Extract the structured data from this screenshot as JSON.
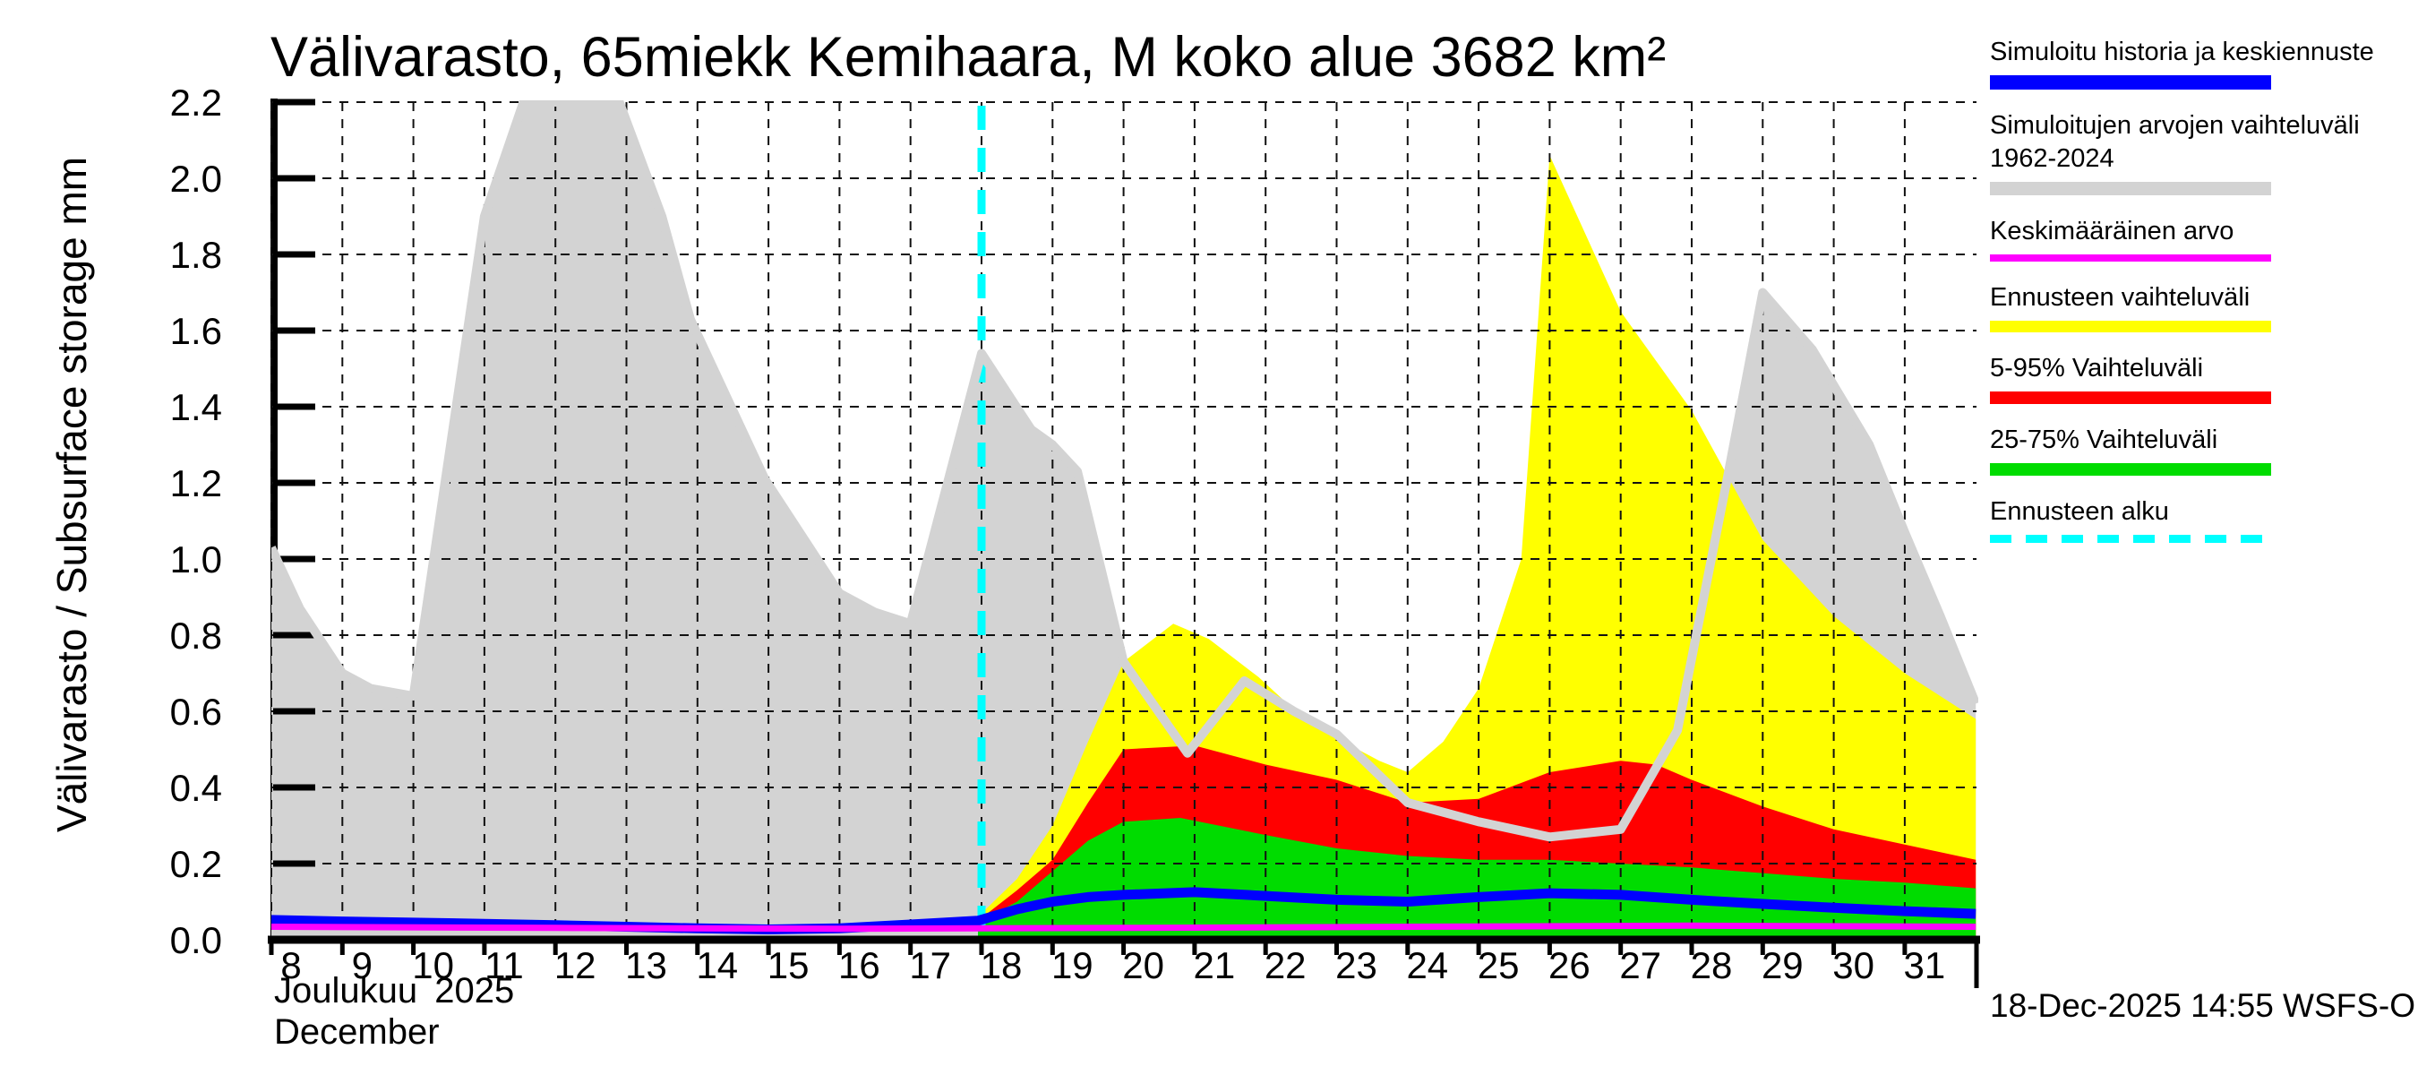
{
  "chart_data": {
    "type": "area",
    "title": "Välivarasto, 65miekk Kemihaara, M koko alue 3682 km²",
    "ylabel": "Välivarasto / Subsurface storage  mm",
    "xlabel_fi": "Joulukuu 2025",
    "xlabel_en": "December",
    "timestamp": "18-Dec-2025 14:55 WSFS-O",
    "ylim": [
      0.0,
      2.2
    ],
    "y_tick_labels": [
      "0.0",
      "0.2",
      "0.4",
      "0.6",
      "0.8",
      "1.0",
      "1.2",
      "1.4",
      "1.6",
      "1.8",
      "2.0",
      "2.2"
    ],
    "x_ticks": [
      8,
      9,
      10,
      11,
      12,
      13,
      14,
      15,
      16,
      17,
      18,
      19,
      20,
      21,
      22,
      23,
      24,
      25,
      26,
      27,
      28,
      29,
      30,
      31
    ],
    "x_domain": [
      8,
      32
    ],
    "forecast_start_day": 18,
    "grid": "dashed",
    "colors": {
      "hist_range_fill": "#d3d3d3",
      "hist_range_line": "#d3d3d3",
      "forecast_range": "#ffff00",
      "p5_95": "#ff0000",
      "p25_75": "#00dc00",
      "median": "#0000ff",
      "mean": "#ff00ff",
      "forecast_start": "#00ffff",
      "axis": "#000000"
    },
    "series": {
      "hist_range_max": [
        [
          8.0,
          1.03
        ],
        [
          8.4,
          0.87
        ],
        [
          9.0,
          0.7
        ],
        [
          9.4,
          0.66
        ],
        [
          10.0,
          0.64
        ],
        [
          11.0,
          1.9
        ],
        [
          11.55,
          2.2
        ],
        [
          12.9,
          2.2
        ],
        [
          13.5,
          1.9
        ],
        [
          13.9,
          1.63
        ],
        [
          14.95,
          1.21
        ],
        [
          16.0,
          0.91
        ],
        [
          16.5,
          0.86
        ],
        [
          17.0,
          0.83
        ],
        [
          18.0,
          1.54
        ],
        [
          18.7,
          1.34
        ],
        [
          19.0,
          1.3
        ],
        [
          19.35,
          1.23
        ],
        [
          20.0,
          0.73
        ],
        [
          20.9,
          0.49
        ],
        [
          21.7,
          0.68
        ],
        [
          22.4,
          0.6
        ],
        [
          23.0,
          0.54
        ],
        [
          24.0,
          0.36
        ],
        [
          25.0,
          0.31
        ],
        [
          26.0,
          0.27
        ],
        [
          27.0,
          0.29
        ],
        [
          27.8,
          0.55
        ],
        [
          28.5,
          1.21
        ],
        [
          29.0,
          1.7
        ],
        [
          29.7,
          1.55
        ],
        [
          30.5,
          1.3
        ],
        [
          31.0,
          1.07
        ],
        [
          31.5,
          0.85
        ],
        [
          32.0,
          0.62
        ]
      ],
      "forecast_max": [
        [
          17.95,
          0.06
        ],
        [
          18.5,
          0.16
        ],
        [
          19.0,
          0.3
        ],
        [
          19.5,
          0.52
        ],
        [
          20.0,
          0.73
        ],
        [
          20.7,
          0.83
        ],
        [
          21.2,
          0.79
        ],
        [
          21.9,
          0.69
        ],
        [
          22.6,
          0.57
        ],
        [
          23.6,
          0.47
        ],
        [
          24.0,
          0.44
        ],
        [
          24.5,
          0.52
        ],
        [
          25.0,
          0.66
        ],
        [
          25.6,
          1.0
        ],
        [
          26.0,
          2.06
        ],
        [
          27.0,
          1.65
        ],
        [
          28.0,
          1.39
        ],
        [
          28.5,
          1.22
        ],
        [
          29.0,
          1.05
        ],
        [
          30.0,
          0.85
        ],
        [
          31.0,
          0.7
        ],
        [
          32.0,
          0.58
        ]
      ],
      "p5_95_max": [
        [
          17.95,
          0.05
        ],
        [
          18.5,
          0.13
        ],
        [
          19.0,
          0.21
        ],
        [
          19.5,
          0.36
        ],
        [
          20.0,
          0.5
        ],
        [
          21.0,
          0.51
        ],
        [
          22.0,
          0.46
        ],
        [
          23.0,
          0.42
        ],
        [
          24.0,
          0.36
        ],
        [
          25.0,
          0.37
        ],
        [
          26.0,
          0.44
        ],
        [
          27.0,
          0.47
        ],
        [
          27.5,
          0.46
        ],
        [
          28.0,
          0.42
        ],
        [
          29.0,
          0.35
        ],
        [
          30.0,
          0.29
        ],
        [
          31.0,
          0.25
        ],
        [
          32.0,
          0.21
        ]
      ],
      "p25_75_max": [
        [
          17.95,
          0.045
        ],
        [
          18.5,
          0.1
        ],
        [
          19.0,
          0.18
        ],
        [
          19.5,
          0.26
        ],
        [
          20.0,
          0.31
        ],
        [
          20.8,
          0.32
        ],
        [
          22.0,
          0.275
        ],
        [
          23.0,
          0.24
        ],
        [
          24.0,
          0.22
        ],
        [
          25.0,
          0.21
        ],
        [
          26.0,
          0.21
        ],
        [
          27.0,
          0.2
        ],
        [
          28.0,
          0.19
        ],
        [
          29.0,
          0.175
        ],
        [
          30.0,
          0.16
        ],
        [
          31.0,
          0.15
        ],
        [
          32.0,
          0.135
        ]
      ],
      "median": [
        [
          8.0,
          0.052
        ],
        [
          9.0,
          0.048
        ],
        [
          10.0,
          0.045
        ],
        [
          11.0,
          0.042
        ],
        [
          12.0,
          0.038
        ],
        [
          13.0,
          0.034
        ],
        [
          14.0,
          0.03
        ],
        [
          15.0,
          0.027
        ],
        [
          16.0,
          0.03
        ],
        [
          17.0,
          0.04
        ],
        [
          17.95,
          0.05
        ],
        [
          18.5,
          0.08
        ],
        [
          19.0,
          0.1
        ],
        [
          19.5,
          0.112
        ],
        [
          20.0,
          0.118
        ],
        [
          21.0,
          0.125
        ],
        [
          22.0,
          0.115
        ],
        [
          23.0,
          0.105
        ],
        [
          24.0,
          0.1
        ],
        [
          25.0,
          0.112
        ],
        [
          26.0,
          0.122
        ],
        [
          27.0,
          0.118
        ],
        [
          28.0,
          0.105
        ],
        [
          29.0,
          0.094
        ],
        [
          30.0,
          0.084
        ],
        [
          31.0,
          0.075
        ],
        [
          32.0,
          0.068
        ]
      ],
      "mean": [
        [
          8.0,
          0.034
        ],
        [
          12.0,
          0.031
        ],
        [
          16.0,
          0.029
        ],
        [
          20.0,
          0.031
        ],
        [
          24.0,
          0.034
        ],
        [
          28.0,
          0.037
        ],
        [
          32.0,
          0.034
        ]
      ]
    }
  },
  "legend": {
    "items": [
      {
        "label": "Simuloitu historia ja keskiennuste",
        "color": "#0000ff",
        "style": "solid",
        "thickness": 16
      },
      {
        "label": "Simuloitujen arvojen vaihteluväli 1962-2024",
        "color": "#d3d3d3",
        "style": "solid",
        "thickness": 15
      },
      {
        "label": "Keskimääräinen arvo",
        "color": "#ff00ff",
        "style": "solid",
        "thickness": 8
      },
      {
        "label": "Ennusteen vaihteluväli",
        "color": "#ffff00",
        "style": "solid",
        "thickness": 13
      },
      {
        "label": "5-95% Vaihteluväli",
        "color": "#ff0000",
        "style": "solid",
        "thickness": 14
      },
      {
        "label": "25-75% Vaihteluväli",
        "color": "#00dc00",
        "style": "solid",
        "thickness": 14
      },
      {
        "label": "Ennusteen alku",
        "color": "#00ffff",
        "style": "dashed",
        "thickness": 9
      }
    ]
  }
}
